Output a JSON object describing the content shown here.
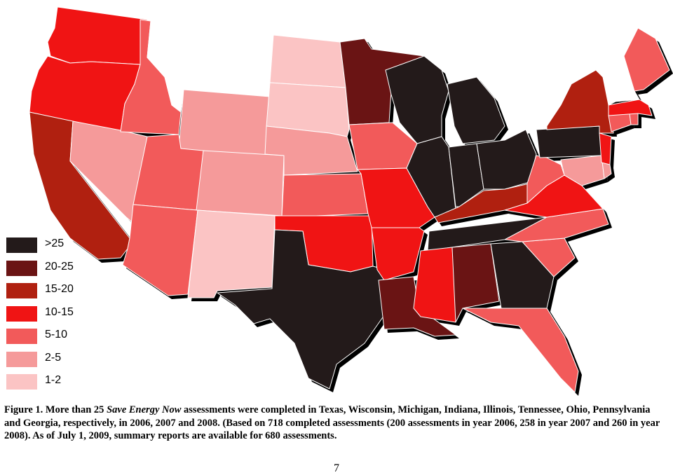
{
  "colors": {
    "gt25": "#231a1a",
    "20-25": "#6a1414",
    "15-20": "#b02010",
    "10-15": "#f01414",
    "5-10": "#f25a5a",
    "2-5": "#f59a9a",
    "1-2": "#fbc4c4",
    "none": "#ffffff",
    "shadow": "#000000"
  },
  "legend": [
    {
      "label": ">25",
      "color": "#231a1a"
    },
    {
      "label": "20-25",
      "color": "#6a1414"
    },
    {
      "label": "15-20",
      "color": "#b02010"
    },
    {
      "label": "10-15",
      "color": "#f01414"
    },
    {
      "label": "5-10",
      "color": "#f25a5a"
    },
    {
      "label": "2-5",
      "color": "#f59a9a"
    },
    {
      "label": "1-2",
      "color": "#fbc4c4"
    }
  ],
  "states": [
    {
      "code": "WA",
      "category": "10-15"
    },
    {
      "code": "OR",
      "category": "10-15"
    },
    {
      "code": "CA",
      "category": "15-20"
    },
    {
      "code": "NV",
      "category": "2-5"
    },
    {
      "code": "ID",
      "category": "5-10"
    },
    {
      "code": "MT",
      "category": "none"
    },
    {
      "code": "WY",
      "category": "2-5"
    },
    {
      "code": "UT",
      "category": "5-10"
    },
    {
      "code": "AZ",
      "category": "5-10"
    },
    {
      "code": "CO",
      "category": "2-5"
    },
    {
      "code": "NM",
      "category": "1-2"
    },
    {
      "code": "ND",
      "category": "1-2"
    },
    {
      "code": "SD",
      "category": "1-2"
    },
    {
      "code": "NE",
      "category": "2-5"
    },
    {
      "code": "KS",
      "category": "5-10"
    },
    {
      "code": "OK",
      "category": "10-15"
    },
    {
      "code": "TX",
      "category": "gt25"
    },
    {
      "code": "MN",
      "category": "20-25"
    },
    {
      "code": "IA",
      "category": "5-10"
    },
    {
      "code": "MO",
      "category": "10-15"
    },
    {
      "code": "AR",
      "category": "10-15"
    },
    {
      "code": "LA",
      "category": "20-25"
    },
    {
      "code": "WI",
      "category": "gt25"
    },
    {
      "code": "IL",
      "category": "gt25"
    },
    {
      "code": "MI",
      "category": "gt25"
    },
    {
      "code": "IN",
      "category": "gt25"
    },
    {
      "code": "OH",
      "category": "gt25"
    },
    {
      "code": "KY",
      "category": "15-20"
    },
    {
      "code": "TN",
      "category": "gt25"
    },
    {
      "code": "MS",
      "category": "10-15"
    },
    {
      "code": "AL",
      "category": "20-25"
    },
    {
      "code": "GA",
      "category": "gt25"
    },
    {
      "code": "FL",
      "category": "5-10"
    },
    {
      "code": "SC",
      "category": "5-10"
    },
    {
      "code": "NC",
      "category": "5-10"
    },
    {
      "code": "VA",
      "category": "10-15"
    },
    {
      "code": "WV",
      "category": "5-10"
    },
    {
      "code": "PA",
      "category": "gt25"
    },
    {
      "code": "NY",
      "category": "15-20"
    },
    {
      "code": "MD",
      "category": "2-5"
    },
    {
      "code": "DE",
      "category": "2-5"
    },
    {
      "code": "NJ",
      "category": "10-15"
    },
    {
      "code": "CT",
      "category": "5-10"
    },
    {
      "code": "RI",
      "category": "5-10"
    },
    {
      "code": "MA",
      "category": "10-15"
    },
    {
      "code": "VT",
      "category": "none"
    },
    {
      "code": "NH",
      "category": "none"
    },
    {
      "code": "ME",
      "category": "5-10"
    }
  ],
  "caption": {
    "part1": "Figure 1. More than 25 ",
    "italic": "Save Energy Now",
    "part2": " assessments were completed in Texas, Wisconsin, Michigan, Indiana, Illinois, Tennessee, Ohio, Pennsylvania and Georgia, respectively, in 2006, 2007 and 2008. (Based on 718 completed assessments (200 assessments in year 2006, 258 in year 2007 and 260 in year 2008). As of July 1, 2009, summary reports are available for 680 assessments."
  },
  "page_number": "7"
}
